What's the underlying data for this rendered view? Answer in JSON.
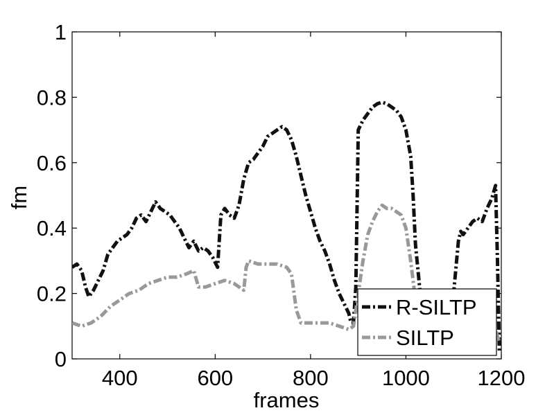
{
  "chart_data": {
    "type": "line",
    "title": "",
    "xlabel": "frames",
    "ylabel": "fm",
    "xlim": [
      300,
      1200
    ],
    "ylim": [
      0,
      1
    ],
    "xticks": [
      400,
      600,
      800,
      1000,
      1200
    ],
    "xtick_labels": [
      "400",
      "600",
      "800",
      "1000",
      "1200"
    ],
    "yticks": [
      0,
      0.2,
      0.4,
      0.6,
      0.8,
      1
    ],
    "ytick_labels": [
      "0",
      "0.2",
      "0.4",
      "0.6",
      "0.8",
      "1"
    ],
    "grid": false,
    "legend": {
      "position": "bottom-right"
    },
    "series": [
      {
        "name": "R-SILTP",
        "color": "#111111",
        "style": "dash-dot",
        "x": [
          300,
          310,
          320,
          328,
          335,
          345,
          355,
          365,
          375,
          385,
          395,
          405,
          415,
          425,
          435,
          445,
          455,
          465,
          475,
          485,
          495,
          505,
          515,
          525,
          535,
          545,
          555,
          565,
          575,
          585,
          595,
          605,
          612,
          620,
          630,
          640,
          650,
          660,
          670,
          680,
          690,
          700,
          710,
          720,
          730,
          740,
          750,
          760,
          770,
          780,
          790,
          800,
          810,
          820,
          830,
          840,
          850,
          860,
          870,
          880,
          885,
          890,
          895,
          900,
          910,
          920,
          930,
          940,
          950,
          960,
          970,
          980,
          990,
          1000,
          1010,
          1015,
          1020,
          1030,
          1040,
          1050,
          1060,
          1070,
          1080,
          1090,
          1100,
          1110,
          1115,
          1120,
          1130,
          1140,
          1150,
          1160,
          1170,
          1180,
          1188,
          1192,
          1196
        ],
        "y": [
          0.28,
          0.29,
          0.27,
          0.22,
          0.19,
          0.21,
          0.24,
          0.27,
          0.32,
          0.34,
          0.36,
          0.37,
          0.38,
          0.4,
          0.43,
          0.44,
          0.42,
          0.45,
          0.48,
          0.46,
          0.45,
          0.44,
          0.42,
          0.4,
          0.37,
          0.34,
          0.36,
          0.33,
          0.34,
          0.33,
          0.31,
          0.28,
          0.44,
          0.46,
          0.44,
          0.43,
          0.47,
          0.55,
          0.6,
          0.61,
          0.63,
          0.65,
          0.68,
          0.69,
          0.7,
          0.71,
          0.7,
          0.67,
          0.62,
          0.56,
          0.5,
          0.45,
          0.4,
          0.36,
          0.33,
          0.29,
          0.24,
          0.2,
          0.17,
          0.14,
          0.11,
          0.11,
          0.22,
          0.7,
          0.73,
          0.75,
          0.77,
          0.78,
          0.785,
          0.78,
          0.77,
          0.76,
          0.74,
          0.7,
          0.62,
          0.5,
          0.35,
          0.2,
          0.1,
          0.06,
          0.04,
          0.03,
          0.03,
          0.04,
          0.2,
          0.36,
          0.39,
          0.38,
          0.4,
          0.42,
          0.43,
          0.42,
          0.46,
          0.49,
          0.53,
          0.3,
          0.02
        ]
      },
      {
        "name": "SILTP",
        "color": "#999999",
        "style": "dash-dot",
        "x": [
          300,
          320,
          340,
          360,
          380,
          400,
          420,
          440,
          460,
          480,
          500,
          520,
          540,
          555,
          565,
          580,
          600,
          620,
          640,
          660,
          665,
          670,
          690,
          710,
          730,
          750,
          760,
          770,
          780,
          800,
          820,
          840,
          860,
          880,
          890,
          900,
          910,
          920,
          930,
          940,
          950,
          960,
          970,
          980,
          990,
          1000,
          1010,
          1020,
          1030,
          1040,
          1060,
          1080,
          1100,
          1120,
          1140,
          1160,
          1180,
          1190,
          1196
        ],
        "y": [
          0.11,
          0.1,
          0.11,
          0.13,
          0.16,
          0.18,
          0.2,
          0.21,
          0.23,
          0.24,
          0.25,
          0.25,
          0.26,
          0.27,
          0.22,
          0.22,
          0.23,
          0.24,
          0.23,
          0.21,
          0.28,
          0.3,
          0.29,
          0.29,
          0.29,
          0.28,
          0.26,
          0.15,
          0.11,
          0.11,
          0.11,
          0.11,
          0.1,
          0.09,
          0.1,
          0.2,
          0.3,
          0.38,
          0.42,
          0.45,
          0.47,
          0.46,
          0.46,
          0.45,
          0.44,
          0.4,
          0.3,
          0.18,
          0.12,
          0.08,
          0.06,
          0.05,
          0.05,
          0.05,
          0.06,
          0.05,
          0.06,
          0.08,
          0.05
        ]
      }
    ]
  }
}
